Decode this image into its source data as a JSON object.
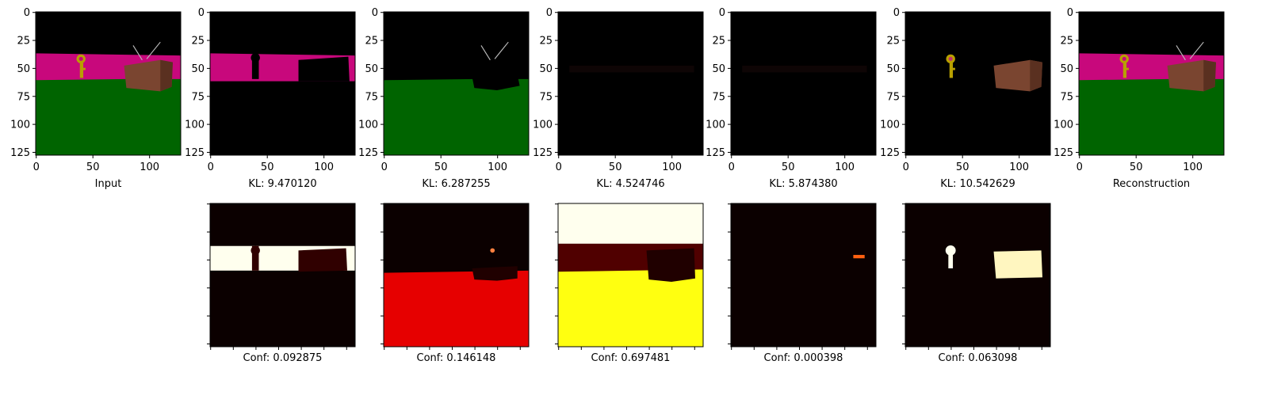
{
  "top_row": {
    "x_ticks": [
      "0",
      "50",
      "100"
    ],
    "y_ticks": [
      "0",
      "25",
      "50",
      "75",
      "100",
      "125"
    ],
    "panels": [
      {
        "label": "Input",
        "scene": "full"
      },
      {
        "label": "KL: 9.470120",
        "scene": "mask-wall"
      },
      {
        "label": "KL: 6.287255",
        "scene": "mask-floor"
      },
      {
        "label": "KL: 4.524746",
        "scene": "mask-dark"
      },
      {
        "label": "KL: 5.874380",
        "scene": "mask-dark"
      },
      {
        "label": "KL: 10.542629",
        "scene": "mask-objects"
      },
      {
        "label": "Reconstruction",
        "scene": "full"
      }
    ]
  },
  "bottom_row": {
    "panels": [
      {
        "label": "Conf: 0.092875",
        "heatmap": "wall-band"
      },
      {
        "label": "Conf: 0.146148",
        "heatmap": "floor-red"
      },
      {
        "label": "Conf: 0.697481",
        "heatmap": "sky-floor-yellow"
      },
      {
        "label": "Conf: 0.000398",
        "heatmap": "dark"
      },
      {
        "label": "Conf: 0.063098",
        "heatmap": "objects"
      }
    ]
  },
  "colors": {
    "wall": "#c8087c",
    "floor": "#006400",
    "box": "#7a4530",
    "key": "#b8a000",
    "heat_dark": "#0b0000",
    "heat_red": "#e60000",
    "heat_yellow": "#ffff10",
    "heat_white": "#ffffee"
  }
}
